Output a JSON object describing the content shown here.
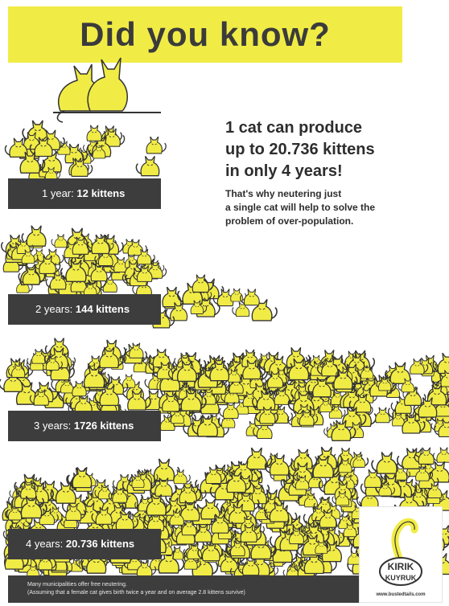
{
  "banner": {
    "title": "Did you know?"
  },
  "headline": {
    "lines": [
      "1 cat can produce",
      "up to 20.736 kittens",
      "in only 4 years!"
    ]
  },
  "subtext": {
    "lines": [
      "That's why neutering just",
      "a single cat will help to solve the",
      "problem of over-population."
    ]
  },
  "stages": [
    {
      "prefix": "1 year:",
      "value": "12 kittens",
      "count": 12
    },
    {
      "prefix": "2 years:",
      "value": "144 kittens",
      "count": 144
    },
    {
      "prefix": "3 years:",
      "value": "1726 kittens",
      "count": 1726
    },
    {
      "prefix": "4 years:",
      "value": "20.736 kittens",
      "count": 20736
    }
  ],
  "footer": {
    "line1": "Many municipalities offer free neutering.",
    "line2": "(Assuming that a female cat gives birth twice a year and on average 2.8 kittens survive)"
  },
  "logo": {
    "word1": "KIRIK",
    "word2": "KUYRUK",
    "url": "www.bustedtails.com"
  },
  "colors": {
    "cat_yellow": "#f1ec45",
    "outline": "#333333",
    "bar": "#3d3d3d",
    "banner": "#f1ec45"
  },
  "icons": {
    "cat": "cat-silhouette-icon",
    "logo": "cat-tail-logo-icon"
  }
}
